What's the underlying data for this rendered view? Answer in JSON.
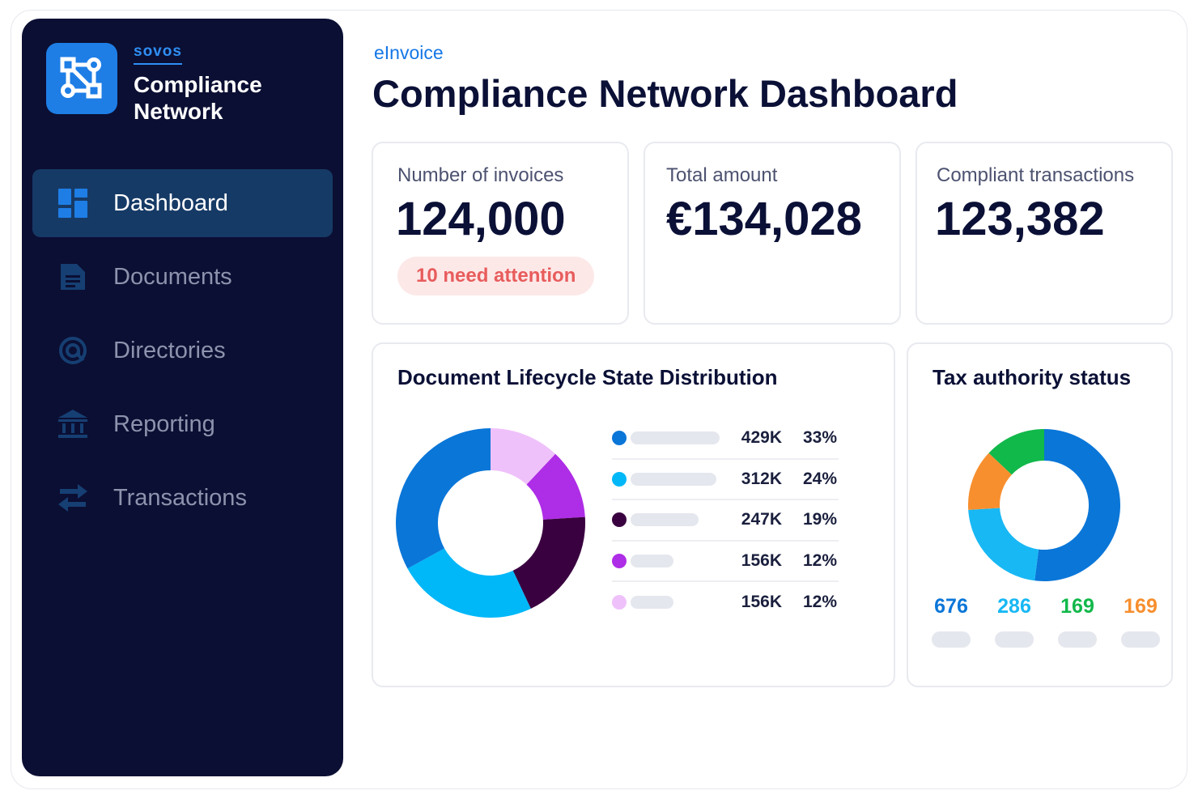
{
  "brand": {
    "company": "sovos",
    "product_line1": "Compliance",
    "product_line2": "Network",
    "logo_icon": "network-nodes-icon"
  },
  "nav": {
    "items": [
      {
        "label": "Dashboard",
        "icon": "dashboard-grid-icon",
        "active": true
      },
      {
        "label": "Documents",
        "icon": "document-icon",
        "active": false
      },
      {
        "label": "Directories",
        "icon": "directory-at-icon",
        "active": false
      },
      {
        "label": "Reporting",
        "icon": "bank-building-icon",
        "active": false
      },
      {
        "label": "Transactions",
        "icon": "swap-arrows-icon",
        "active": false
      }
    ]
  },
  "header": {
    "breadcrumb": "eInvoice",
    "title": "Compliance Network Dashboard"
  },
  "kpis": [
    {
      "label": "Number of invoices",
      "value": "124,000",
      "badge": "10 need attention"
    },
    {
      "label": "Total amount",
      "value": "€134,028"
    },
    {
      "label": "Compliant transactions",
      "value": "123,382"
    }
  ],
  "lifecycle": {
    "title": "Document Lifecycle State Distribution",
    "rows": [
      {
        "value": "429K",
        "pct": "33%",
        "color": "#0a76d8",
        "bar_fraction": 0.33
      },
      {
        "value": "312K",
        "pct": "24%",
        "color": "#00b7f8",
        "bar_fraction": 0.24
      },
      {
        "value": "247K",
        "pct": "19%",
        "color": "#3a0140",
        "bar_fraction": 0.19
      },
      {
        "value": "156K",
        "pct": "12%",
        "color": "#ae2de6",
        "bar_fraction": 0.12
      },
      {
        "value": "156K",
        "pct": "12%",
        "color": "#efc1fb",
        "bar_fraction": 0.12
      }
    ]
  },
  "tax": {
    "title": "Tax authority status",
    "items": [
      {
        "value": "676",
        "color": "#0a76d8"
      },
      {
        "value": "286",
        "color": "#18b8f4"
      },
      {
        "value": "169",
        "color": "#11b84a"
      },
      {
        "value": "169",
        "color": "#f78f2e"
      }
    ]
  },
  "chart_data": [
    {
      "type": "pie",
      "title": "Document Lifecycle State Distribution",
      "categories": [
        "",
        "",
        "",
        "",
        ""
      ],
      "values": [
        33,
        24,
        19,
        12,
        12
      ],
      "labels": [
        "429K",
        "312K",
        "247K",
        "156K",
        "156K"
      ],
      "colors": [
        "#0a76d8",
        "#00b7f8",
        "#3a0140",
        "#ae2de6",
        "#efc1fb"
      ]
    },
    {
      "type": "pie",
      "title": "Tax authority status",
      "categories": [
        "",
        "",
        "",
        ""
      ],
      "values": [
        676,
        286,
        169,
        169
      ],
      "colors": [
        "#0a76d8",
        "#18b8f4",
        "#f78f2e",
        "#11b84a"
      ]
    }
  ]
}
